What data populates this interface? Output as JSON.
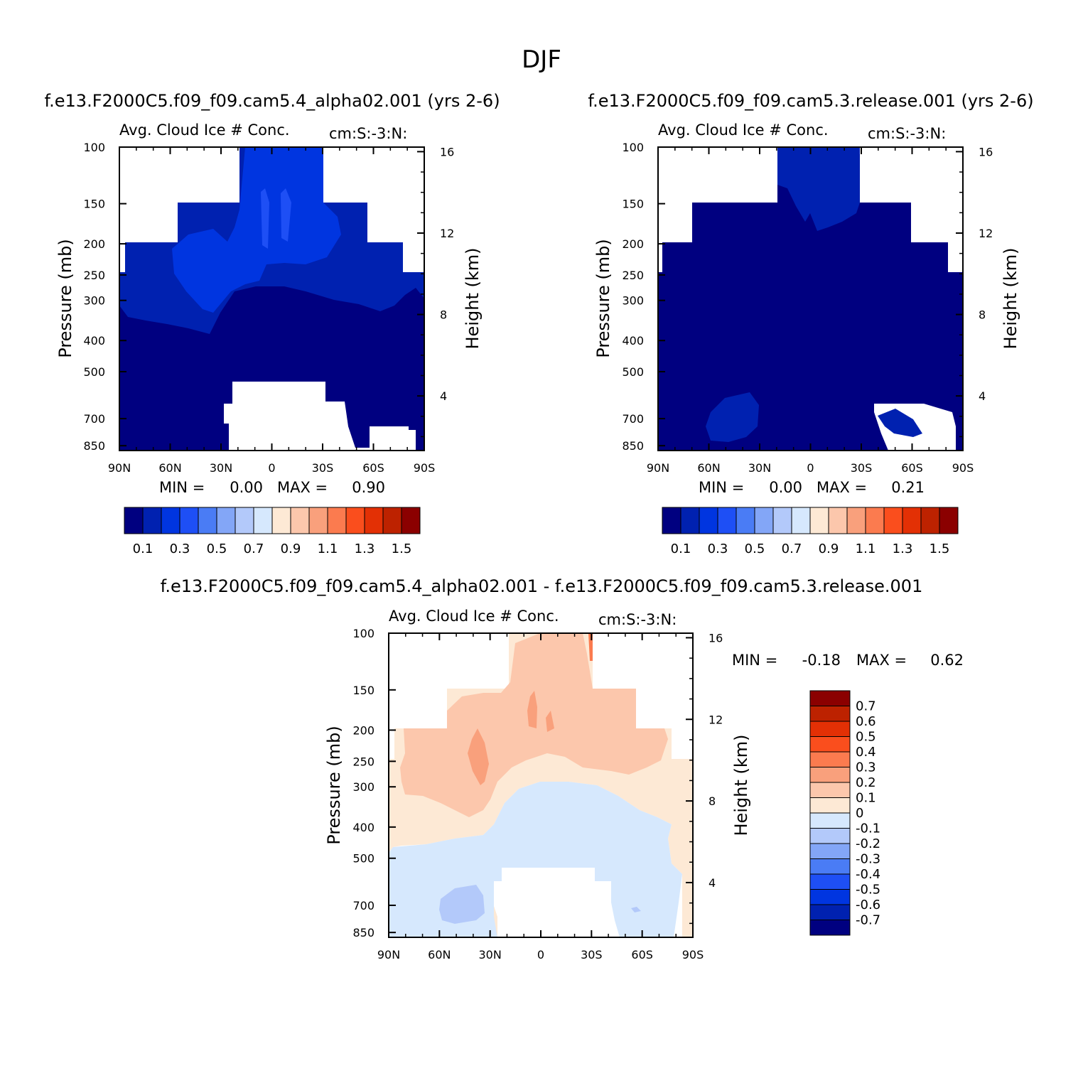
{
  "page": {
    "season": "DJF",
    "diff_title": "f.e13.F2000C5.f09_f09.cam5.4_alpha02.001 - f.e13.F2000C5.f09_f09.cam5.3.release.001"
  },
  "colors": {
    "main": [
      "#000080",
      "#0021b0",
      "#0035e0",
      "#1e4ff5",
      "#4a7cf5",
      "#83a6f7",
      "#b3c9fa",
      "#d6e8fd",
      "#fde9d5",
      "#fcc7ac",
      "#f9a07c",
      "#fb7b4f",
      "#fa4e1d",
      "#e33005",
      "#bd2200",
      "#8b0000"
    ],
    "diff": [
      "#8b0000",
      "#bd2200",
      "#e33005",
      "#fa4e1d",
      "#fb7b4f",
      "#f9a07c",
      "#fcc7ac",
      "#fde9d5",
      "#d6e8fd",
      "#b3c9fa",
      "#83a6f7",
      "#4a7cf5",
      "#1e4ff5",
      "#0035e0",
      "#0021b0",
      "#000080"
    ]
  },
  "chart_data": [
    {
      "type": "contour",
      "id": "case",
      "title": "f.e13.F2000C5.f09_f09.cam5.4_alpha02.001 (yrs 2-6)",
      "variable": "Avg. Cloud Ice # Conc.",
      "units": "cm:S:-3:N:",
      "ylabel": "Pressure (mb)",
      "y2label": "Height (km)",
      "xticks": [
        "90N",
        "60N",
        "30N",
        "0",
        "30S",
        "60S",
        "90S"
      ],
      "yticks": [
        "100",
        "150",
        "200",
        "250",
        "300",
        "400",
        "500",
        "700",
        "850"
      ],
      "y2ticks": [
        "4",
        "8",
        "12",
        "16"
      ],
      "min_label": "MIN =",
      "min": "0.00",
      "max_label": "MAX =",
      "max": "0.90",
      "colorbar_labels": [
        "0.1",
        "0.3",
        "0.5",
        "0.7",
        "0.9",
        "1.1",
        "1.3",
        "1.5"
      ]
    },
    {
      "type": "contour",
      "id": "control",
      "title": "f.e13.F2000C5.f09_f09.cam5.3.release.001 (yrs 2-6)",
      "variable": "Avg. Cloud Ice # Conc.",
      "units": "cm:S:-3:N:",
      "ylabel": "Pressure (mb)",
      "y2label": "Height (km)",
      "xticks": [
        "90N",
        "60N",
        "30N",
        "0",
        "30S",
        "60S",
        "90S"
      ],
      "yticks": [
        "100",
        "150",
        "200",
        "250",
        "300",
        "400",
        "500",
        "700",
        "850"
      ],
      "y2ticks": [
        "4",
        "8",
        "12",
        "16"
      ],
      "min_label": "MIN =",
      "min": "0.00",
      "max_label": "MAX =",
      "max": "0.21",
      "colorbar_labels": [
        "0.1",
        "0.3",
        "0.5",
        "0.7",
        "0.9",
        "1.1",
        "1.3",
        "1.5"
      ]
    },
    {
      "type": "contour",
      "id": "diff",
      "variable": "Avg. Cloud Ice # Conc.",
      "units": "cm:S:-3:N:",
      "ylabel": "Pressure (mb)",
      "y2label": "Height (km)",
      "xticks": [
        "90N",
        "60N",
        "30N",
        "0",
        "30S",
        "60S",
        "90S"
      ],
      "yticks": [
        "100",
        "150",
        "200",
        "250",
        "300",
        "400",
        "500",
        "700",
        "850"
      ],
      "y2ticks": [
        "4",
        "8",
        "12",
        "16"
      ],
      "min_label": "MIN =",
      "min": "-0.18",
      "max_label": "MAX =",
      "max": "0.62",
      "colorbar_labels": [
        "0.7",
        "0.6",
        "0.5",
        "0.4",
        "0.3",
        "0.2",
        "0.1",
        "0",
        "-0.1",
        "-0.2",
        "-0.3",
        "-0.4",
        "-0.5",
        "-0.6",
        "-0.7"
      ]
    }
  ]
}
